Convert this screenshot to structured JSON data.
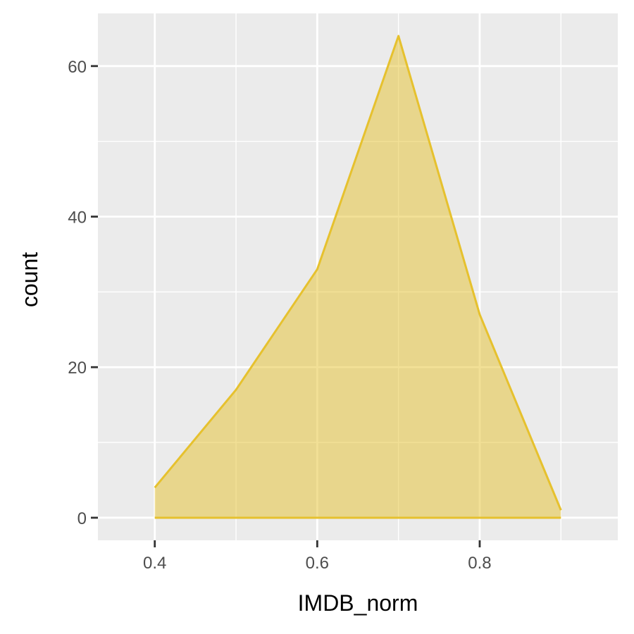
{
  "chart_data": {
    "type": "area",
    "xlabel": "IMDB_norm",
    "ylabel": "count",
    "x": [
      0.4,
      0.5,
      0.6,
      0.7,
      0.8,
      0.9
    ],
    "series": [
      {
        "values": [
          4,
          17,
          33,
          64,
          27,
          1
        ]
      }
    ],
    "xlim": [
      0.33,
      0.97
    ],
    "ylim": [
      -3,
      67
    ],
    "x_ticks": [
      0.4,
      0.6,
      0.8
    ],
    "x_minor": [
      0.5,
      0.7,
      0.9
    ],
    "y_ticks": [
      0,
      20,
      40,
      60
    ],
    "y_minor": [
      10,
      30,
      50
    ],
    "grid": true,
    "colors": {
      "panel": "#ebebeb",
      "grid": "#ffffff",
      "line": "#e6c12e",
      "fill": "#e6c12e",
      "fill_opacity": 0.5
    }
  }
}
